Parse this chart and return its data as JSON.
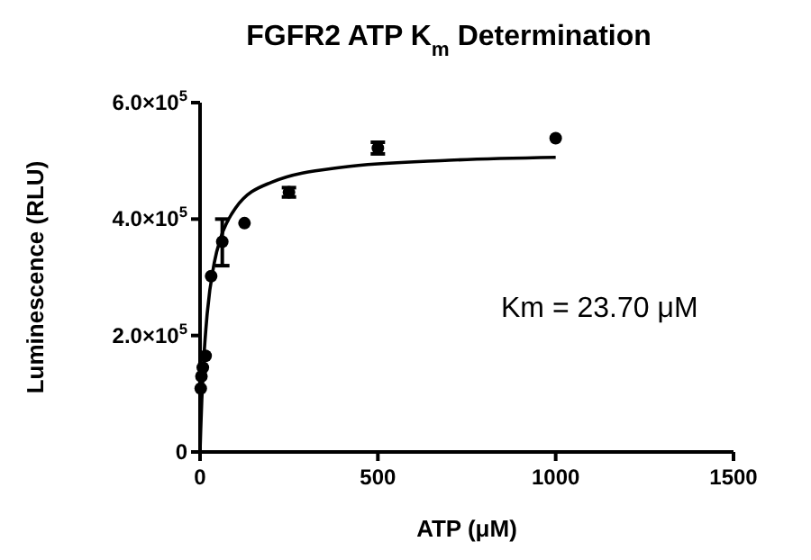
{
  "chart_data": {
    "type": "scatter",
    "title": "FGFR2 ATP K$_{m}$ Determination",
    "xlabel": "ATP (μM)",
    "ylabel": "Luminescence (RLU)",
    "annotations": [
      "Km = 23.70 μM"
    ],
    "xlim": [
      0,
      1500
    ],
    "xticks": [
      0,
      500,
      1000,
      1500
    ],
    "ylim": [
      0,
      600000
    ],
    "yticks": [
      {
        "value": 0,
        "label": "0"
      },
      {
        "value": 200000,
        "label": "2.0×10$^{5}$"
      },
      {
        "value": 400000,
        "label": "4.0×10$^{5}$"
      },
      {
        "value": 600000,
        "label": "6.0×10$^{5}$"
      }
    ],
    "grid": false,
    "marker": "circle",
    "series": [
      {
        "color": "#000000",
        "x": [
          1.95,
          3.9,
          7.8,
          15.6,
          31.25,
          62.5,
          125,
          250,
          500,
          1000
        ],
        "values": [
          109000,
          130000,
          145000,
          165000,
          302000,
          361000,
          393000,
          446000,
          522000,
          539000
        ],
        "errors": [
          null,
          null,
          null,
          null,
          null,
          [
            320000,
            400000
          ],
          null,
          8000,
          10000,
          null
        ]
      },
      {
        "type": "line",
        "color": "#000000",
        "marker": "none",
        "x": [
          0,
          2,
          5,
          10,
          20,
          40,
          60,
          100,
          200,
          400,
          700,
          1000
        ],
        "values": [
          0,
          40000,
          90000,
          154000,
          237000,
          325000,
          371000,
          419000,
          463000,
          489000,
          501000,
          506000
        ]
      }
    ]
  }
}
